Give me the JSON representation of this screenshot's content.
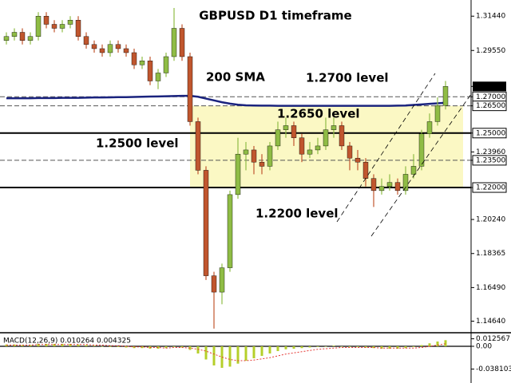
{
  "chart_data": [
    {
      "type": "candlestick",
      "title": "GBPUSD D1 timeframe",
      "annotations": [
        "200 SMA",
        "1.2700 level",
        "1.2650 level",
        "1.2500 level",
        "1.2200 level"
      ],
      "up_color": "#8fbc45",
      "down_color": "#c0562e",
      "ohlc": [
        [
          1.301,
          1.3055,
          1.2988,
          1.3032
        ],
        [
          1.3032,
          1.3077,
          1.301,
          1.3055
        ],
        [
          1.3055,
          1.3077,
          1.2988,
          1.301
        ],
        [
          1.301,
          1.3055,
          1.2988,
          1.3032
        ],
        [
          1.3032,
          1.3166,
          1.301,
          1.3144
        ],
        [
          1.3144,
          1.3166,
          1.3077,
          1.3099
        ],
        [
          1.3099,
          1.3122,
          1.3055,
          1.3077
        ],
        [
          1.3077,
          1.3122,
          1.3055,
          1.3099
        ],
        [
          1.3099,
          1.3144,
          1.3077,
          1.3122
        ],
        [
          1.3122,
          1.3144,
          1.301,
          1.3032
        ],
        [
          1.3032,
          1.3055,
          1.2965,
          1.2988
        ],
        [
          1.2988,
          1.301,
          1.2943,
          1.2965
        ],
        [
          1.2965,
          1.2988,
          1.2921,
          1.2943
        ],
        [
          1.2943,
          1.301,
          1.2921,
          1.2988
        ],
        [
          1.2988,
          1.301,
          1.2943,
          1.2965
        ],
        [
          1.2965,
          1.2988,
          1.2921,
          1.2943
        ],
        [
          1.2943,
          1.2965,
          1.2853,
          1.2876
        ],
        [
          1.2876,
          1.2921,
          1.2853,
          1.2898
        ],
        [
          1.2898,
          1.2921,
          1.2764,
          1.2787
        ],
        [
          1.2787,
          1.2853,
          1.2742,
          1.2831
        ],
        [
          1.2831,
          1.2943,
          1.2809,
          1.2921
        ],
        [
          1.2921,
          1.3189,
          1.2898,
          1.3077
        ],
        [
          1.3077,
          1.3099,
          1.2898,
          1.2921
        ],
        [
          1.2921,
          1.2943,
          1.2541,
          1.2563
        ],
        [
          1.2563,
          1.2585,
          1.2273,
          1.2295
        ],
        [
          1.2295,
          1.2317,
          1.1691,
          1.1714
        ],
        [
          1.1714,
          1.1736,
          1.1423,
          1.1624
        ],
        [
          1.1624,
          1.1781,
          1.1557,
          1.1758
        ],
        [
          1.1758,
          1.2183,
          1.1736,
          1.2161
        ],
        [
          1.2161,
          1.2474,
          1.2138,
          1.2384
        ],
        [
          1.2384,
          1.2451,
          1.2295,
          1.2407
        ],
        [
          1.2407,
          1.2429,
          1.2273,
          1.234
        ],
        [
          1.234,
          1.2384,
          1.2273,
          1.2317
        ],
        [
          1.2317,
          1.2451,
          1.2295,
          1.2429
        ],
        [
          1.2429,
          1.2563,
          1.2407,
          1.2518
        ],
        [
          1.2518,
          1.2585,
          1.2474,
          1.2541
        ],
        [
          1.2541,
          1.2563,
          1.2429,
          1.2474
        ],
        [
          1.2474,
          1.2496,
          1.234,
          1.2384
        ],
        [
          1.2384,
          1.2451,
          1.2362,
          1.2407
        ],
        [
          1.2407,
          1.2474,
          1.2384,
          1.2429
        ],
        [
          1.2429,
          1.2585,
          1.2407,
          1.2518
        ],
        [
          1.2518,
          1.2585,
          1.2474,
          1.2541
        ],
        [
          1.2541,
          1.2563,
          1.2407,
          1.2429
        ],
        [
          1.2429,
          1.2451,
          1.2295,
          1.2362
        ],
        [
          1.2362,
          1.2407,
          1.2295,
          1.234
        ],
        [
          1.234,
          1.2362,
          1.2206,
          1.225
        ],
        [
          1.225,
          1.2273,
          1.2093,
          1.2183
        ],
        [
          1.2183,
          1.225,
          1.2161,
          1.2206
        ],
        [
          1.2206,
          1.2273,
          1.2183,
          1.2228
        ],
        [
          1.2228,
          1.225,
          1.2161,
          1.2183
        ],
        [
          1.2183,
          1.2317,
          1.2161,
          1.2273
        ],
        [
          1.2273,
          1.2384,
          1.225,
          1.2317
        ],
        [
          1.2317,
          1.2518,
          1.2295,
          1.2496
        ],
        [
          1.2496,
          1.2608,
          1.2474,
          1.2563
        ],
        [
          1.2563,
          1.2697,
          1.2541,
          1.2652
        ],
        [
          1.2652,
          1.2787,
          1.263,
          1.2757
        ]
      ],
      "lines": [
        {
          "color": "#1a237e",
          "values": [
            1.2692,
            1.2692,
            1.2692,
            1.2692,
            1.2693,
            1.2693,
            1.2693,
            1.2694,
            1.2694,
            1.2694,
            1.2695,
            1.2696,
            1.2696,
            1.2697,
            1.2698,
            1.2698,
            1.2699,
            1.27,
            1.2701,
            1.2702,
            1.2703,
            1.2704,
            1.2705,
            1.2705,
            1.27,
            1.269,
            1.268,
            1.267,
            1.2662,
            1.2656,
            1.2653,
            1.2652,
            1.2651,
            1.2651,
            1.265,
            1.265,
            1.265,
            1.265,
            1.265,
            1.265,
            1.265,
            1.265,
            1.265,
            1.265,
            1.265,
            1.265,
            1.265,
            1.265,
            1.265,
            1.2651,
            1.2652,
            1.2655,
            1.2658,
            1.2661,
            1.2664,
            1.2667
          ]
        }
      ],
      "levels": [
        {
          "value": 1.27,
          "style": "dashed"
        },
        {
          "value": 1.265,
          "style": "dashed"
        },
        {
          "value": 1.25,
          "style": "solid"
        },
        {
          "value": 1.235,
          "style": "dashed"
        },
        {
          "value": 1.22,
          "style": "solid"
        }
      ],
      "zone": [
        1.22,
        1.265
      ],
      "zone_color": "#fbf8c4",
      "ylim": [
        1.1409,
        1.3233
      ],
      "yticks": [
        {
          "value": 1.3144,
          "label": "1.31440"
        },
        {
          "value": 1.2955,
          "label": "1.29550"
        },
        {
          "value": 1.2757,
          "label": "1.27570"
        },
        {
          "value": 1.27,
          "label": "1.27000"
        },
        {
          "value": 1.265,
          "label": "1.26500"
        },
        {
          "value": 1.25,
          "label": "1.25000"
        },
        {
          "value": 1.2396,
          "label": "1.23960"
        },
        {
          "value": 1.235,
          "label": "1.23500"
        },
        {
          "value": 1.22,
          "label": "1.22000"
        },
        {
          "value": 1.2024,
          "label": "1.20240"
        },
        1.18365,
        {
          "value": 1.1649,
          "label": "1.16490"
        },
        {
          "value": 1.1464,
          "label": "1.14640"
        }
      ]
    },
    {
      "type": "macd",
      "title": "MACD(12,26,9) 0.010264 0.004325",
      "series": [
        {
          "color": "#a8c f20",
          "values": [
            0.003,
            0.003,
            0.002,
            0.002,
            0.004,
            0.004,
            0.004,
            0.004,
            0.004,
            0.003,
            0.002,
            0.001,
            0.0,
            -0.001,
            -0.001,
            -0.002,
            -0.003,
            -0.003,
            -0.004,
            -0.004,
            -0.003,
            -0.001,
            -0.002,
            -0.006,
            -0.012,
            -0.022,
            -0.032,
            -0.036,
            -0.034,
            -0.029,
            -0.024,
            -0.02,
            -0.016,
            -0.012,
            -0.008,
            -0.005,
            -0.004,
            -0.003,
            -0.002,
            -0.001,
            0.0,
            0.001,
            0.0,
            -0.001,
            -0.001,
            -0.002,
            -0.003,
            -0.004,
            -0.004,
            -0.004,
            -0.003,
            -0.001,
            0.002,
            0.005,
            0.008,
            0.010264
          ]
        },
        {
          "color": "#e53935",
          "values": [
            0.002,
            0.002,
            0.002,
            0.002,
            0.003,
            0.003,
            0.003,
            0.003,
            0.003,
            0.003,
            0.003,
            0.002,
            0.002,
            0.001,
            0.001,
            0.0,
            -0.001,
            -0.001,
            -0.002,
            -0.002,
            -0.003,
            -0.002,
            -0.002,
            -0.003,
            -0.005,
            -0.008,
            -0.013,
            -0.018,
            -0.022,
            -0.024,
            -0.024,
            -0.023,
            -0.021,
            -0.019,
            -0.016,
            -0.013,
            -0.011,
            -0.009,
            -0.007,
            -0.005,
            -0.004,
            -0.003,
            -0.002,
            -0.002,
            -0.002,
            -0.002,
            -0.002,
            -0.003,
            -0.003,
            -0.003,
            -0.003,
            -0.003,
            -0.002,
            0.0,
            0.002,
            0.004325
          ]
        }
      ],
      "ylim": [
        -0.0587,
        0.0187
      ],
      "yticks": [
        0.012567,
        {
          "value": 0,
          "label": "0.00"
        },
        -0.038103
      ]
    }
  ]
}
